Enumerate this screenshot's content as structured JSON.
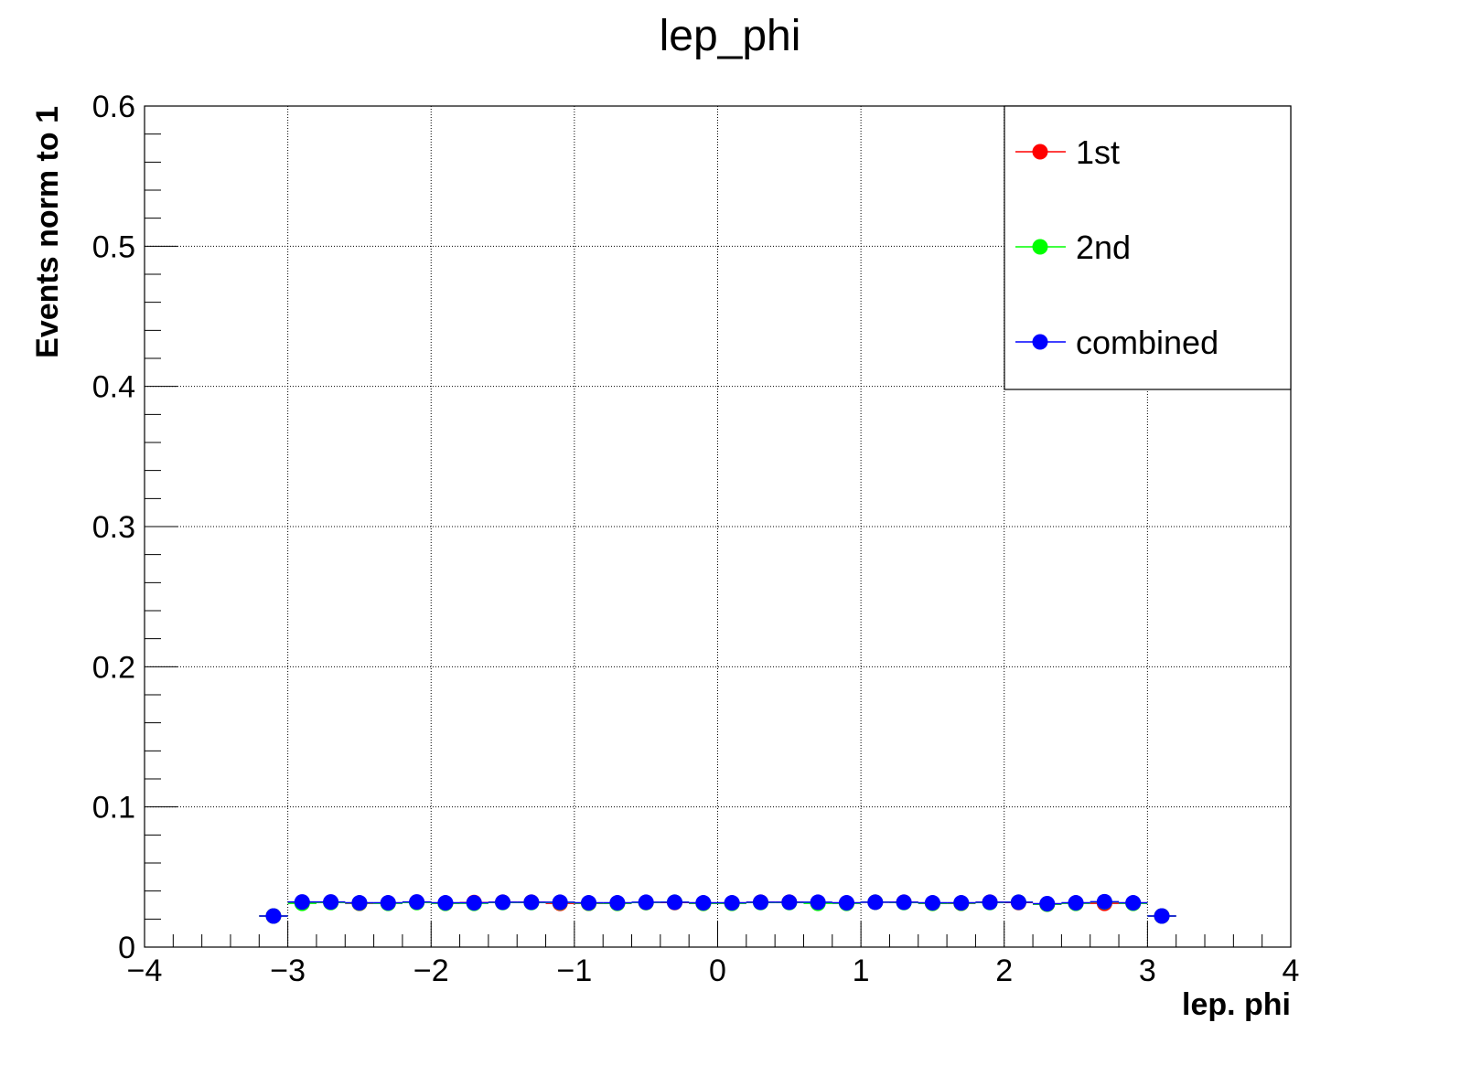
{
  "chart_data": {
    "type": "scatter",
    "title": "lep_phi",
    "xlabel": "lep. phi",
    "ylabel": "Events norm to 1",
    "xlim": [
      -4,
      4
    ],
    "ylim": [
      0,
      0.6
    ],
    "x_ticks": [
      -4,
      -3,
      -2,
      -1,
      0,
      1,
      2,
      3,
      4
    ],
    "x_tick_labels": [
      "−4",
      "−3",
      "−2",
      "−1",
      "0",
      "1",
      "2",
      "3",
      "4"
    ],
    "y_ticks": [
      0,
      0.1,
      0.2,
      0.3,
      0.4,
      0.5,
      0.6
    ],
    "y_tick_labels": [
      "0",
      "0.1",
      "0.2",
      "0.3",
      "0.4",
      "0.5",
      "0.6"
    ],
    "grid": true,
    "legend_position": "top-right",
    "bin_edges": [
      -3.2,
      -3.0,
      -2.8,
      -2.6,
      -2.4,
      -2.2,
      -2.0,
      -1.8,
      -1.6,
      -1.4,
      -1.2,
      -1.0,
      -0.8,
      -0.6,
      -0.4,
      -0.2,
      0.0,
      0.2,
      0.4,
      0.6,
      0.8,
      1.0,
      1.2,
      1.4,
      1.6,
      1.8,
      2.0,
      2.2,
      2.4,
      2.6,
      2.8,
      3.0,
      3.2
    ],
    "x": [
      -3.1,
      -2.9,
      -2.7,
      -2.5,
      -2.3,
      -2.1,
      -1.9,
      -1.7,
      -1.5,
      -1.3,
      -1.1,
      -0.9,
      -0.7,
      -0.5,
      -0.3,
      -0.1,
      0.1,
      0.3,
      0.5,
      0.7,
      0.9,
      1.1,
      1.3,
      1.5,
      1.7,
      1.9,
      2.1,
      2.3,
      2.5,
      2.7,
      2.9,
      3.1
    ],
    "series": [
      {
        "name": "1st",
        "color": "#ff0000",
        "values": [
          0.0222,
          0.0318,
          0.032,
          0.0312,
          0.0314,
          0.032,
          0.0313,
          0.0318,
          0.032,
          0.032,
          0.0312,
          0.0312,
          0.0312,
          0.0318,
          0.0318,
          0.0312,
          0.0313,
          0.032,
          0.032,
          0.0316,
          0.0314,
          0.032,
          0.032,
          0.0312,
          0.0312,
          0.032,
          0.0318,
          0.0306,
          0.0313,
          0.0312,
          0.0313,
          0.0222
        ]
      },
      {
        "name": "2nd",
        "color": "#00ff00",
        "values": [
          0.0222,
          0.0312,
          0.0318,
          0.0314,
          0.0312,
          0.0318,
          0.0312,
          0.0312,
          0.0318,
          0.0318,
          0.0318,
          0.0313,
          0.0312,
          0.0318,
          0.032,
          0.0312,
          0.0312,
          0.0318,
          0.0318,
          0.0312,
          0.0312,
          0.032,
          0.0318,
          0.0312,
          0.0313,
          0.0318,
          0.032,
          0.0306,
          0.0312,
          0.0322,
          0.0312,
          0.0222
        ]
      },
      {
        "name": "combined",
        "color": "#0000ff",
        "values": [
          0.0222,
          0.0322,
          0.0322,
          0.0316,
          0.0316,
          0.0322,
          0.0316,
          0.0316,
          0.032,
          0.032,
          0.032,
          0.0316,
          0.0316,
          0.032,
          0.032,
          0.0316,
          0.0316,
          0.032,
          0.032,
          0.032,
          0.0316,
          0.032,
          0.032,
          0.0316,
          0.0316,
          0.032,
          0.032,
          0.031,
          0.0316,
          0.0324,
          0.0316,
          0.0222
        ]
      }
    ]
  }
}
